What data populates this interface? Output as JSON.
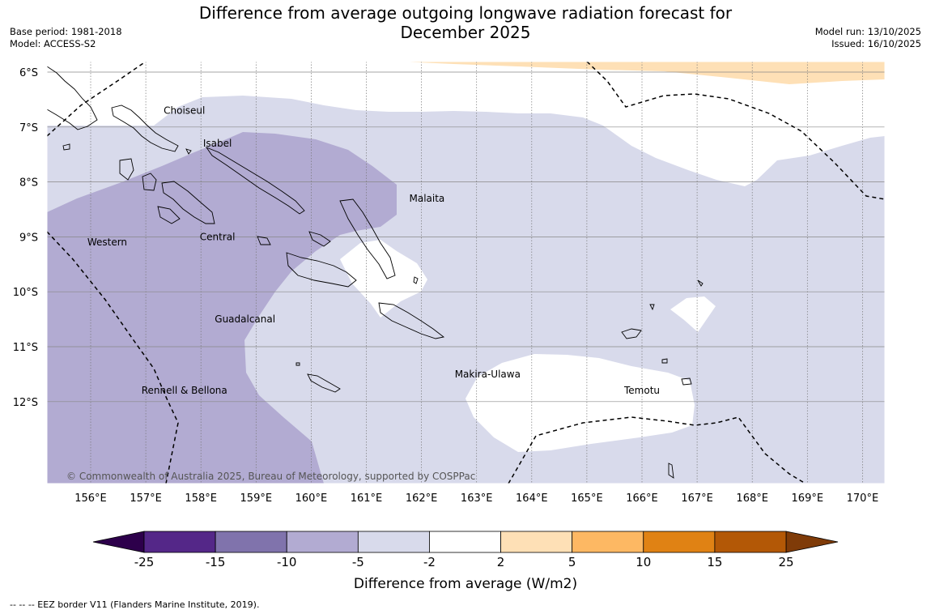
{
  "title_line1": "Difference from average outgoing longwave radiation forecast for",
  "title_line2": "December 2025",
  "meta_left": {
    "base_period": "Base period: 1981-2018",
    "model": "Model: ACCESS-S2"
  },
  "meta_right": {
    "model_run": "Model run: 13/10/2025",
    "issued": "Issued: 16/10/2025"
  },
  "map": {
    "lat_labels": [
      "6°S",
      "7°S",
      "8°S",
      "9°S",
      "10°S",
      "11°S",
      "12°S"
    ],
    "lon_labels": [
      "156°E",
      "157°E",
      "158°E",
      "159°E",
      "160°E",
      "161°E",
      "162°E",
      "163°E",
      "164°E",
      "165°E",
      "166°E",
      "167°E",
      "168°E",
      "169°E",
      "170°E"
    ],
    "regions": [
      "Choiseul",
      "Isabel",
      "Malaita",
      "Western",
      "Central",
      "Guadalcanal",
      "Makira-Ulawa",
      "Rennell & Bellona",
      "Temotu"
    ],
    "copyright": "© Commonwealth of Australia 2025, Bureau of Meteorology, supported by COSPPac"
  },
  "colorbar": {
    "title": "Difference from average (W/m2)",
    "ticks": [
      "-25",
      "-15",
      "-10",
      "-5",
      "-2",
      "2",
      "5",
      "10",
      "15",
      "25"
    ],
    "colors": [
      "#542788",
      "#8073ac",
      "#b2abd2",
      "#d8daeb",
      "#ffffff",
      "#fee0b6",
      "#fdb863",
      "#e08214",
      "#b35806"
    ],
    "under_color": "#2d004b",
    "over_color": "#7f3b08"
  },
  "legend_eez": "--  --  -- EEZ border V11 (Flanders Marine Institute, 2019)."
}
